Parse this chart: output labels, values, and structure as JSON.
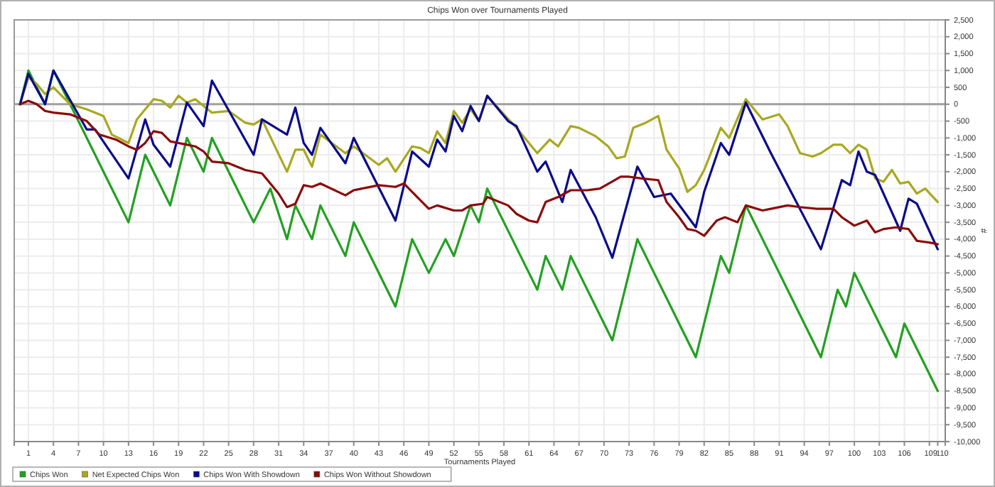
{
  "chart_data": {
    "type": "line",
    "title": "Chips Won over Tournaments Played",
    "xlabel": "Tournaments Played",
    "ylabel": "#",
    "xlim": [
      -0.7,
      110.9
    ],
    "xticks": [
      1,
      4,
      7,
      10,
      13,
      16,
      19,
      22,
      25,
      28,
      31,
      34,
      37,
      40,
      43,
      46,
      49,
      52,
      55,
      58,
      61,
      64,
      67,
      70,
      73,
      76,
      79,
      82,
      85,
      88,
      91,
      94,
      97,
      100,
      103,
      106,
      109,
      110
    ],
    "ylim": [
      -10000,
      2500
    ],
    "yticks": [
      {
        "value": 2500,
        "label": "2,500"
      },
      {
        "value": 2000,
        "label": "2,000"
      },
      {
        "value": 1500,
        "label": "1,500"
      },
      {
        "value": 1000,
        "label": "1,000"
      },
      500,
      0,
      -500,
      {
        "value": -1000,
        "label": "-1,000"
      },
      {
        "value": -1500,
        "label": "-1,500"
      },
      {
        "value": -2000,
        "label": "-2,000"
      },
      {
        "value": -2500,
        "label": "-2,500"
      },
      {
        "value": -3000,
        "label": "-3,000"
      },
      {
        "value": -3500,
        "label": "-3,500"
      },
      {
        "value": -4000,
        "label": "-4,000"
      },
      {
        "value": -4500,
        "label": "-4,500"
      },
      {
        "value": -5000,
        "label": "-5,000"
      },
      {
        "value": -5500,
        "label": "-5,500"
      },
      {
        "value": -6000,
        "label": "-6,000"
      },
      {
        "value": -6500,
        "label": "-6,500"
      },
      {
        "value": -7000,
        "label": "-7,000"
      },
      {
        "value": -7500,
        "label": "-7,500"
      },
      {
        "value": -8000,
        "label": "-8,000"
      },
      {
        "value": -8500,
        "label": "-8,500"
      },
      {
        "value": -9000,
        "label": "-9,000"
      },
      {
        "value": -9500,
        "label": "-9,500"
      },
      {
        "value": -10000,
        "label": "-10,000"
      }
    ],
    "grid": true,
    "legend": "bottom left",
    "line_style": "solid",
    "ref_lines": [
      {
        "axis": "y",
        "value": 0,
        "color": "#a0a0a0"
      }
    ],
    "series": [
      {
        "name": "Chips Won",
        "color": "#22a022",
        "x": [
          0,
          1,
          3,
          4,
          13,
          15,
          18,
          20,
          22,
          23,
          28,
          30,
          32,
          33,
          35,
          36,
          39,
          40,
          45,
          47,
          49,
          51,
          52,
          54,
          55,
          56,
          62,
          63,
          65,
          66,
          71,
          74,
          81,
          84,
          85,
          87,
          96,
          98,
          99,
          100,
          105,
          106,
          110
        ],
        "values": [
          0,
          1000,
          0,
          1000,
          -3500,
          -1500,
          -3000,
          -1000,
          -2000,
          -1000,
          -3500,
          -2500,
          -4000,
          -3000,
          -4000,
          -3000,
          -4500,
          -3500,
          -6000,
          -4000,
          -5000,
          -4000,
          -4500,
          -3000,
          -3500,
          -2500,
          -5500,
          -4500,
          -5500,
          -4500,
          -7000,
          -4000,
          -7500,
          -4500,
          -5000,
          -3000,
          -7500,
          -5500,
          -6000,
          -5000,
          -7500,
          -6500,
          -8500
        ]
      },
      {
        "name": "Net Expected Chips Won",
        "color": "#a8a820",
        "x": [
          0,
          1,
          2,
          3,
          4,
          6,
          8,
          10,
          11,
          13,
          14,
          16,
          17,
          18,
          19,
          20,
          21,
          23,
          25,
          27,
          28,
          29,
          32,
          33,
          34,
          35,
          36,
          39,
          40,
          43,
          44,
          45,
          47,
          48,
          49,
          50,
          51,
          52,
          53,
          54,
          55,
          56,
          58,
          59.5,
          61,
          62,
          63.5,
          64.5,
          66,
          67,
          69,
          70.5,
          71.5,
          72.5,
          73.5,
          75,
          76.5,
          77.5,
          79,
          80,
          81,
          82,
          84,
          85,
          87,
          89,
          91,
          92,
          93.5,
          95,
          96,
          97.5,
          98.5,
          99.5,
          100.5,
          101.5,
          102.5,
          103.5,
          104.5,
          105.5,
          106.5,
          107.5,
          108.5,
          110
        ],
        "values": [
          0,
          800,
          600,
          300,
          500,
          0,
          -150,
          -350,
          -900,
          -1150,
          -450,
          150,
          100,
          -100,
          250,
          50,
          150,
          -250,
          -200,
          -550,
          -600,
          -450,
          -2000,
          -1350,
          -1350,
          -1850,
          -900,
          -1450,
          -1250,
          -1800,
          -1600,
          -2000,
          -1250,
          -1300,
          -1450,
          -800,
          -1150,
          -200,
          -550,
          -150,
          -500,
          250,
          -300,
          -700,
          -1150,
          -1450,
          -1050,
          -1250,
          -650,
          -700,
          -950,
          -1250,
          -1600,
          -1550,
          -700,
          -550,
          -350,
          -1350,
          -1900,
          -2600,
          -2400,
          -1950,
          -700,
          -1000,
          150,
          -450,
          -300,
          -650,
          -1450,
          -1550,
          -1450,
          -1200,
          -1200,
          -1450,
          -1200,
          -1350,
          -2200,
          -2300,
          -1950,
          -2350,
          -2300,
          -2650,
          -2500,
          -2900
        ]
      },
      {
        "name": "Chips Won With Showdown",
        "color": "#0a0a8c",
        "x": [
          0,
          1,
          3,
          4,
          8,
          9,
          13,
          15,
          16,
          18,
          20,
          22,
          23,
          28,
          29,
          32,
          33,
          34,
          35,
          36,
          39,
          40,
          45,
          47,
          49,
          50,
          51,
          52,
          53,
          54,
          55,
          56,
          58.5,
          59.5,
          62,
          63,
          65,
          66,
          69,
          71,
          74,
          76,
          78,
          81,
          82,
          84,
          85,
          87,
          90,
          96,
          98.5,
          99.5,
          100.5,
          101.5,
          102.5,
          105.5,
          106.5,
          107.5,
          110
        ],
        "values": [
          0,
          900,
          0,
          1000,
          -750,
          -750,
          -2200,
          -450,
          -1200,
          -1850,
          50,
          -650,
          700,
          -1500,
          -450,
          -900,
          -100,
          -1150,
          -1500,
          -700,
          -1750,
          -1000,
          -3450,
          -1400,
          -1850,
          -1050,
          -1400,
          -350,
          -800,
          -50,
          -500,
          250,
          -500,
          -650,
          -2000,
          -1700,
          -2900,
          -1950,
          -3350,
          -4550,
          -1850,
          -2750,
          -2650,
          -3650,
          -2600,
          -1150,
          -1500,
          50,
          -1450,
          -4300,
          -2250,
          -2400,
          -1400,
          -2000,
          -2100,
          -3750,
          -2800,
          -2950,
          -4300
        ]
      },
      {
        "name": "Chips Won Without Showdown",
        "color": "#8b0a0a",
        "x": [
          0,
          1,
          2,
          3,
          4,
          6,
          8,
          9.5,
          11.5,
          13,
          14,
          15,
          16,
          17,
          18,
          19,
          21,
          22,
          23,
          25,
          27,
          29,
          31,
          32,
          33,
          34,
          35,
          36,
          39,
          40,
          43,
          45,
          46,
          47,
          49,
          50,
          52,
          53,
          54,
          55.5,
          56,
          58.5,
          59.5,
          61,
          62,
          63,
          64.5,
          66,
          68,
          69.5,
          72,
          73,
          74.5,
          76.5,
          77.5,
          79,
          80,
          81,
          82,
          83.5,
          84.5,
          86,
          87,
          89,
          90,
          92,
          93.5,
          95.5,
          97.5,
          98.5,
          100,
          101.5,
          102.5,
          103.5,
          105,
          106.5,
          107.5,
          109,
          110
        ],
        "values": [
          0,
          100,
          0,
          -200,
          -250,
          -300,
          -500,
          -900,
          -1050,
          -1250,
          -1350,
          -1150,
          -800,
          -850,
          -1100,
          -1150,
          -1250,
          -1400,
          -1700,
          -1750,
          -1950,
          -2050,
          -2650,
          -3050,
          -2950,
          -2400,
          -2450,
          -2350,
          -2700,
          -2550,
          -2400,
          -2450,
          -2350,
          -2600,
          -3100,
          -3000,
          -3150,
          -3150,
          -3000,
          -2950,
          -2750,
          -3000,
          -3250,
          -3450,
          -3500,
          -2900,
          -2750,
          -2550,
          -2550,
          -2500,
          -2150,
          -2150,
          -2200,
          -2250,
          -2900,
          -3350,
          -3700,
          -3750,
          -3900,
          -3450,
          -3350,
          -3500,
          -3000,
          -3150,
          -3100,
          -3000,
          -3050,
          -3100,
          -3100,
          -3350,
          -3600,
          -3450,
          -3800,
          -3700,
          -3650,
          -3700,
          -4050,
          -4100,
          -4150
        ]
      }
    ]
  }
}
